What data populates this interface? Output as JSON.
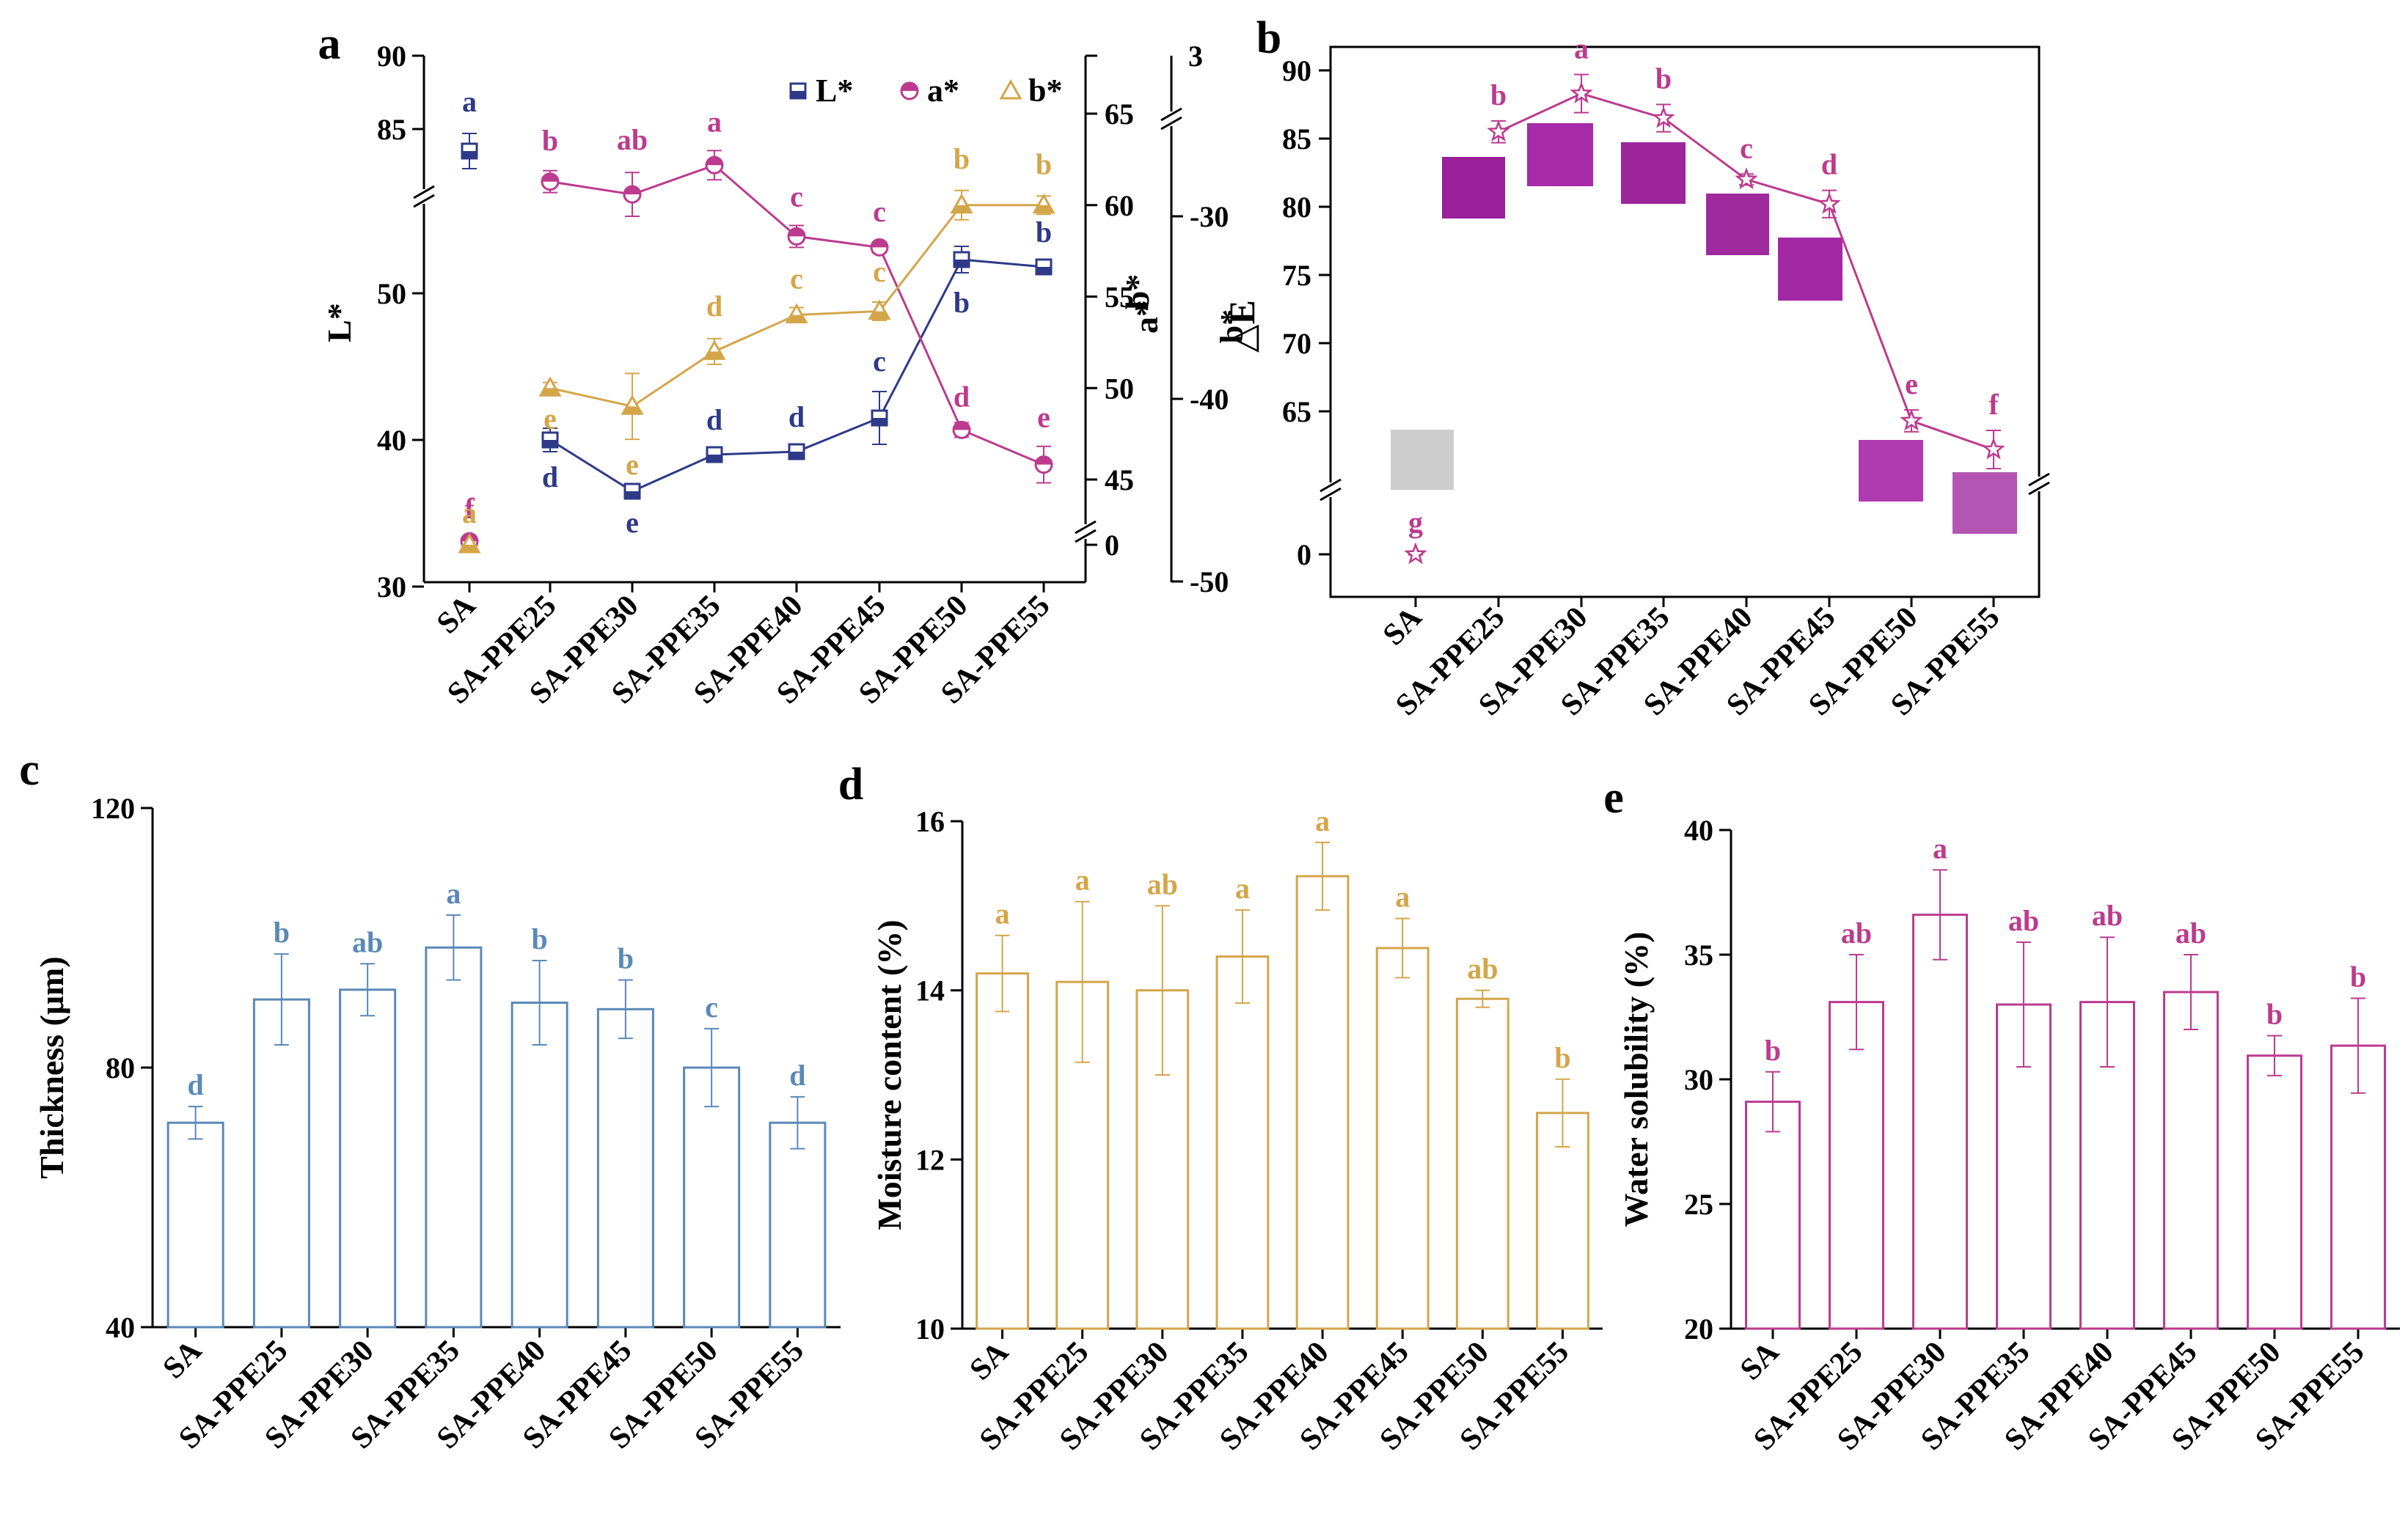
{
  "colors": {
    "axis": "#000000",
    "L": "#2E3A87",
    "a": "#BC3B8E",
    "b": "#D4A64A",
    "thickness": "#5A89B8",
    "moisture": "#D4A64A",
    "solubility": "#BC3B8E",
    "film_gray": "#CDCDCD",
    "film_purple": "#9A1F9A",
    "film_pink": "#B544B5"
  },
  "chart_data": [
    {
      "panel": "a",
      "type": "line",
      "categories": [
        "SA",
        "SA-PPE25",
        "SA-PPE30",
        "SA-PPE35",
        "SA-PPE40",
        "SA-PPE45",
        "SA-PPE50",
        "SA-PPE55"
      ],
      "ylabel": "L*",
      "y2label": "a*",
      "y3label": "b*",
      "axes": {
        "L": {
          "ticks": [
            "30",
            "40",
            "50",
            "85",
            "90"
          ]
        },
        "b": {
          "ticks": [
            "0",
            "45",
            "50",
            "55",
            "60",
            "65",
            "3"
          ]
        },
        "a": {
          "ticks": [
            "-50",
            "-40",
            "-30"
          ]
        }
      },
      "series": [
        {
          "name": "L*",
          "values": [
            83.5,
            40.0,
            36.5,
            39.0,
            39.2,
            41.5,
            52.3,
            51.8
          ],
          "errors": [
            1.2,
            0.8,
            0.4,
            0.4,
            0.4,
            1.8,
            0.9,
            0.4
          ],
          "letters": [
            "a",
            "d",
            "e",
            "d",
            "d",
            "c",
            "b",
            "b"
          ]
        },
        {
          "name": "a*",
          "values": [
            -47.8,
            -28.1,
            -28.8,
            -27.2,
            -31.1,
            -31.7,
            -41.7,
            -43.6
          ],
          "errors": [
            0.2,
            0.6,
            1.2,
            0.8,
            0.6,
            0.3,
            0.4,
            1.0
          ],
          "letters": [
            "f",
            "b",
            "ab",
            "a",
            "c",
            "c",
            "d",
            "e"
          ]
        },
        {
          "name": "b*",
          "values": [
            2.4,
            50.0,
            49.0,
            52.0,
            54.0,
            54.2,
            60.0,
            60.0
          ],
          "errors": [
            0.1,
            0.3,
            1.8,
            0.7,
            0.4,
            0.5,
            0.8,
            0.5
          ],
          "letters": [
            "a",
            "e",
            "e",
            "d",
            "c",
            "c",
            "b",
            "b"
          ]
        }
      ]
    },
    {
      "panel": "b",
      "type": "line",
      "categories": [
        "SA",
        "SA-PPE25",
        "SA-PPE30",
        "SA-PPE35",
        "SA-PPE40",
        "SA-PPE45",
        "SA-PPE50",
        "SA-PPE55"
      ],
      "ylabel": "△E",
      "ylabel_super": "b*",
      "yticks": [
        "0",
        "65",
        "70",
        "75",
        "80",
        "85",
        "90"
      ],
      "series": [
        {
          "name": "△E",
          "values": [
            0.0,
            85.5,
            88.3,
            86.5,
            82.0,
            80.2,
            64.3,
            62.2
          ],
          "errors": [
            0.1,
            0.8,
            1.4,
            1.0,
            0.4,
            1.0,
            0.8,
            1.4
          ],
          "letters": [
            "g",
            "b",
            "a",
            "b",
            "c",
            "d",
            "e",
            "f"
          ]
        }
      ]
    },
    {
      "panel": "c",
      "type": "bar",
      "categories": [
        "SA",
        "SA-PPE25",
        "SA-PPE30",
        "SA-PPE35",
        "SA-PPE40",
        "SA-PPE45",
        "SA-PPE50",
        "SA-PPE55"
      ],
      "ylabel": "Thickness (μm)",
      "ylim": [
        40,
        120
      ],
      "yticks": [
        "40",
        "80",
        "120"
      ],
      "values": [
        71.5,
        90.5,
        92.0,
        98.5,
        90.0,
        89.0,
        80.0,
        71.5
      ],
      "errors": [
        2.5,
        7.0,
        4.0,
        5.0,
        6.5,
        4.5,
        6.0,
        4.0
      ],
      "letters": [
        "d",
        "b",
        "ab",
        "a",
        "b",
        "b",
        "c",
        "d"
      ]
    },
    {
      "panel": "d",
      "type": "bar",
      "categories": [
        "SA",
        "SA-PPE25",
        "SA-PPE30",
        "SA-PPE35",
        "SA-PPE40",
        "SA-PPE45",
        "SA-PPE50",
        "SA-PPE55"
      ],
      "ylabel": "Moisture content (%)",
      "ylim": [
        10,
        16
      ],
      "yticks": [
        "10",
        "12",
        "14",
        "16"
      ],
      "values": [
        14.2,
        14.1,
        14.0,
        14.4,
        15.35,
        14.5,
        13.9,
        12.55
      ],
      "errors": [
        0.45,
        0.95,
        1.0,
        0.55,
        0.4,
        0.35,
        0.1,
        0.4
      ],
      "letters": [
        "a",
        "a",
        "ab",
        "a",
        "a",
        "a",
        "ab",
        "b"
      ]
    },
    {
      "panel": "e",
      "type": "bar",
      "categories": [
        "SA",
        "SA-PPE25",
        "SA-PPE30",
        "SA-PPE35",
        "SA-PPE40",
        "SA-PPE45",
        "SA-PPE50",
        "SA-PPE55"
      ],
      "ylabel": "Water solubility (%)",
      "ylim": [
        20,
        40
      ],
      "yticks": [
        "20",
        "25",
        "30",
        "35",
        "40"
      ],
      "values": [
        29.1,
        33.1,
        36.6,
        33.0,
        33.1,
        33.5,
        30.95,
        31.35
      ],
      "errors": [
        1.2,
        1.9,
        1.8,
        2.5,
        2.6,
        1.5,
        0.8,
        1.9
      ],
      "letters": [
        "b",
        "ab",
        "a",
        "ab",
        "ab",
        "ab",
        "b",
        "b"
      ]
    }
  ]
}
